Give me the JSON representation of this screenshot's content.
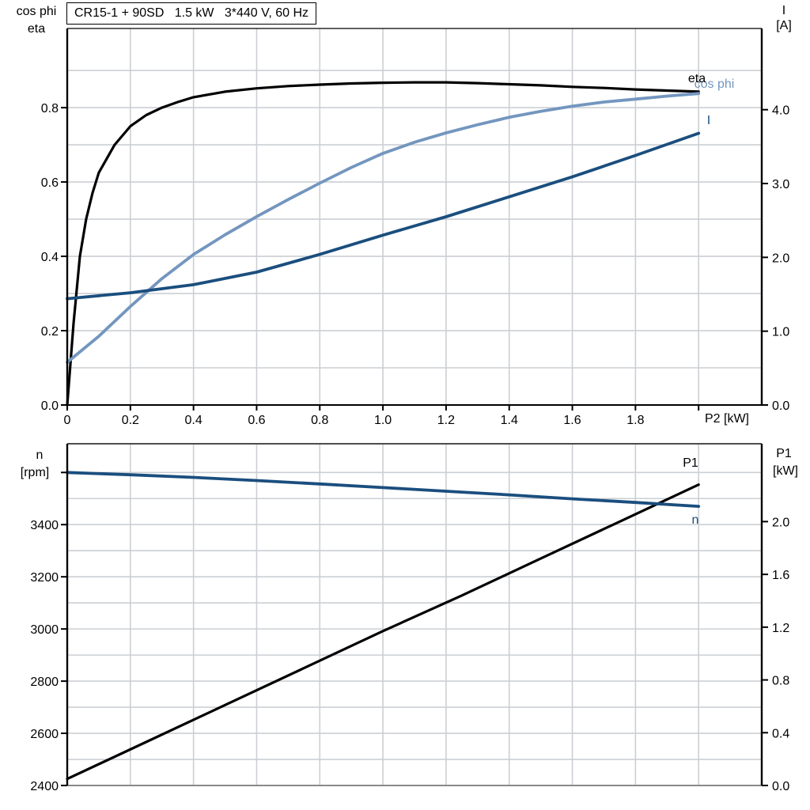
{
  "colors": {
    "black": "#000000",
    "light_blue": "#7396bf",
    "dark_blue": "#1a4e7e",
    "grid": "#cbcfd4",
    "frame_top_gray": "#4d4d4d",
    "frame_bottom_gray": "#8a8a8a"
  },
  "chart_data": [
    {
      "type": "line",
      "title": "CR15-1 + 90SD   1.5 kW   3*440 V, 60 Hz",
      "axes": {
        "x": {
          "label": "P2 [kW]",
          "range": [
            0,
            2.2
          ],
          "tick_values": [
            0,
            0.2,
            0.4,
            0.6,
            0.8,
            1.0,
            1.2,
            1.4,
            1.6,
            1.8,
            2.0
          ],
          "tick_labels": [
            "0",
            "0.2",
            "0.4",
            "0.6",
            "0.8",
            "1.0",
            "1.2",
            "1.4",
            "1.6",
            "1.8",
            ""
          ],
          "grid_values": [
            0.2,
            0.4,
            0.6,
            0.8,
            1.0,
            1.2,
            1.4,
            1.6,
            1.8,
            2.0
          ]
        },
        "left": {
          "label_lines": [
            "cos phi",
            "eta"
          ],
          "range": [
            0,
            1.013
          ],
          "tick_values": [
            0,
            0.2,
            0.4,
            0.6,
            0.8
          ],
          "tick_labels": [
            "0.0",
            "0.2",
            "0.4",
            "0.6",
            "0.8"
          ],
          "grid_values": [
            0.1,
            0.2,
            0.3,
            0.4,
            0.5,
            0.6,
            0.7,
            0.8,
            0.9
          ]
        },
        "right": {
          "label_lines": [
            "I",
            "[A]"
          ],
          "range": [
            0,
            5.1
          ],
          "tick_values": [
            0,
            1,
            2,
            3,
            4
          ],
          "tick_labels": [
            "0.0",
            "1.0",
            "2.0",
            "3.0",
            "4.0"
          ]
        }
      },
      "series": [
        {
          "name": "eta",
          "label": "eta",
          "axis": "left",
          "color_key": "black",
          "points": [
            [
              0,
              0
            ],
            [
              0.02,
              0.22
            ],
            [
              0.04,
              0.4
            ],
            [
              0.06,
              0.5
            ],
            [
              0.08,
              0.57
            ],
            [
              0.1,
              0.625
            ],
            [
              0.15,
              0.7
            ],
            [
              0.2,
              0.75
            ],
            [
              0.25,
              0.78
            ],
            [
              0.3,
              0.8
            ],
            [
              0.35,
              0.815
            ],
            [
              0.4,
              0.828
            ],
            [
              0.5,
              0.843
            ],
            [
              0.6,
              0.852
            ],
            [
              0.7,
              0.858
            ],
            [
              0.8,
              0.862
            ],
            [
              0.9,
              0.865
            ],
            [
              1.0,
              0.867
            ],
            [
              1.1,
              0.868
            ],
            [
              1.2,
              0.868
            ],
            [
              1.3,
              0.866
            ],
            [
              1.4,
              0.863
            ],
            [
              1.5,
              0.86
            ],
            [
              1.6,
              0.856
            ],
            [
              1.7,
              0.853
            ],
            [
              1.8,
              0.849
            ],
            [
              1.9,
              0.846
            ],
            [
              2.0,
              0.843
            ]
          ]
        },
        {
          "name": "cos_phi",
          "label": "cos phi",
          "axis": "left",
          "color_key": "light_blue",
          "points": [
            [
              0,
              0.115
            ],
            [
              0.1,
              0.185
            ],
            [
              0.2,
              0.265
            ],
            [
              0.3,
              0.34
            ],
            [
              0.4,
              0.405
            ],
            [
              0.5,
              0.458
            ],
            [
              0.6,
              0.507
            ],
            [
              0.7,
              0.553
            ],
            [
              0.8,
              0.597
            ],
            [
              0.9,
              0.639
            ],
            [
              1.0,
              0.677
            ],
            [
              1.1,
              0.707
            ],
            [
              1.2,
              0.732
            ],
            [
              1.3,
              0.754
            ],
            [
              1.4,
              0.774
            ],
            [
              1.5,
              0.79
            ],
            [
              1.6,
              0.804
            ],
            [
              1.7,
              0.815
            ],
            [
              1.8,
              0.823
            ],
            [
              1.9,
              0.831
            ],
            [
              2.0,
              0.838
            ]
          ]
        },
        {
          "name": "I",
          "label": "I",
          "axis": "right",
          "color_key": "dark_blue",
          "points": [
            [
              0,
              1.44
            ],
            [
              0.2,
              1.52
            ],
            [
              0.4,
              1.63
            ],
            [
              0.6,
              1.8
            ],
            [
              0.8,
              2.04
            ],
            [
              1.0,
              2.3
            ],
            [
              1.2,
              2.55
            ],
            [
              1.4,
              2.82
            ],
            [
              1.6,
              3.09
            ],
            [
              1.8,
              3.38
            ],
            [
              2.0,
              3.68
            ]
          ]
        }
      ]
    },
    {
      "type": "line",
      "title": "",
      "axes": {
        "x": {
          "label": "",
          "range": [
            0,
            2.2
          ],
          "tick_values": [],
          "tick_labels": [],
          "grid_values": [
            0.2,
            0.4,
            0.6,
            0.8,
            1.0,
            1.2,
            1.4,
            1.6,
            1.8,
            2.0
          ]
        },
        "left": {
          "label_lines": [
            "n",
            "[rpm]"
          ],
          "range": [
            2400,
            3710
          ],
          "tick_values": [
            2400,
            2600,
            2800,
            3000,
            3200,
            3400,
            3600
          ],
          "tick_labels": [
            "2400",
            "2600",
            "2800",
            "3000",
            "3200",
            "3400",
            ""
          ],
          "grid_values": [
            2500,
            2600,
            2700,
            2800,
            2900,
            3000,
            3100,
            3200,
            3300,
            3400,
            3500,
            3600
          ]
        },
        "right": {
          "label_lines": [
            "P1",
            "[kW]"
          ],
          "range": [
            0,
            2.59
          ],
          "tick_values": [
            0,
            0.4,
            0.8,
            1.2,
            1.6,
            2.0
          ],
          "tick_labels": [
            "0.0",
            "0.4",
            "0.8",
            "1.2",
            "1.6",
            "2.0"
          ]
        }
      },
      "series": [
        {
          "name": "P1",
          "label": "P1",
          "axis": "right",
          "color_key": "black",
          "points": [
            [
              0,
              0.05
            ],
            [
              0.25,
              0.33
            ],
            [
              0.5,
              0.61
            ],
            [
              0.75,
              0.89
            ],
            [
              1.0,
              1.17
            ],
            [
              1.25,
              1.44
            ],
            [
              1.5,
              1.72
            ],
            [
              1.75,
              2.0
            ],
            [
              2.0,
              2.28
            ]
          ]
        },
        {
          "name": "n",
          "label": "n",
          "axis": "left",
          "color_key": "dark_blue",
          "points": [
            [
              0,
              3600
            ],
            [
              0.2,
              3591
            ],
            [
              0.4,
              3581
            ],
            [
              0.6,
              3569
            ],
            [
              0.8,
              3556
            ],
            [
              1.0,
              3542
            ],
            [
              1.2,
              3528
            ],
            [
              1.4,
              3514
            ],
            [
              1.6,
              3499
            ],
            [
              1.8,
              3485
            ],
            [
              2.0,
              3470
            ]
          ]
        }
      ]
    }
  ]
}
